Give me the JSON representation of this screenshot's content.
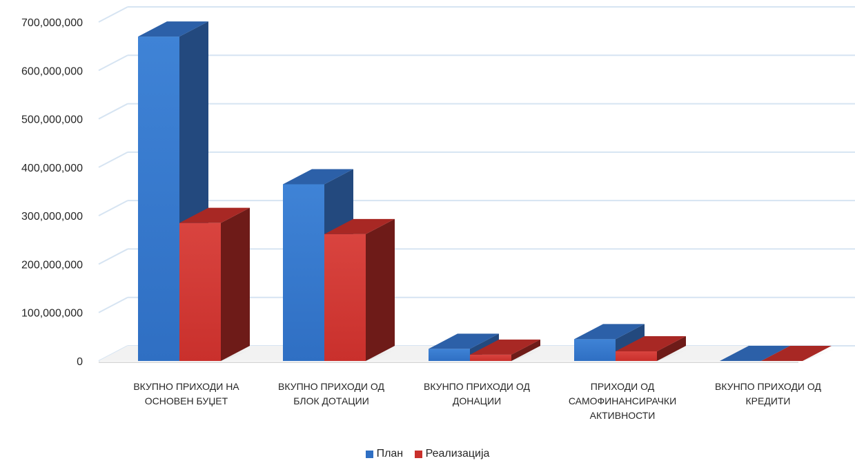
{
  "chart_data": {
    "type": "bar",
    "style": "3d-clustered-column",
    "categories": [
      [
        "ВКУПНО ПРИХОДИ НА",
        "ОСНОВЕН БУЏЕТ"
      ],
      [
        "ВКУПНО ПРИХОДИ ОД",
        "БЛОК ДОТАЦИИ"
      ],
      [
        "ВКУНПО ПРИХОДИ ОД",
        "ДОНАЦИИ"
      ],
      [
        "ПРИХОДИ ОД",
        "САМОФИНАНСИРАЧКИ",
        "АКТИВНОСТИ"
      ],
      [
        "ВКУНПО ПРИХОДИ ОД",
        "КРЕДИТИ"
      ]
    ],
    "series": [
      {
        "name": "План",
        "values": [
          670000000,
          365000000,
          25000000,
          45000000,
          0
        ]
      },
      {
        "name": "Реализација",
        "values": [
          285000000,
          262000000,
          13000000,
          20000000,
          0
        ]
      }
    ],
    "ylim": [
      0,
      700000000
    ],
    "yticks": [
      "0",
      "100,000,000",
      "200,000,000",
      "300,000,000",
      "400,000,000",
      "500,000,000",
      "600,000,000",
      "700,000,000"
    ],
    "grid": true,
    "legend_position": "bottom",
    "colors": {
      "plan_front": "#2F6FC3",
      "plan_front_light": "#3F83D6",
      "plan_side": "#23497E",
      "plan_top": "#2C60A8",
      "real_front": "#C9302C",
      "real_front_light": "#D9443F",
      "real_side": "#6E1B18",
      "real_top": "#A82824",
      "grid": "#D6E4F2",
      "axis_text": "#262626"
    }
  }
}
